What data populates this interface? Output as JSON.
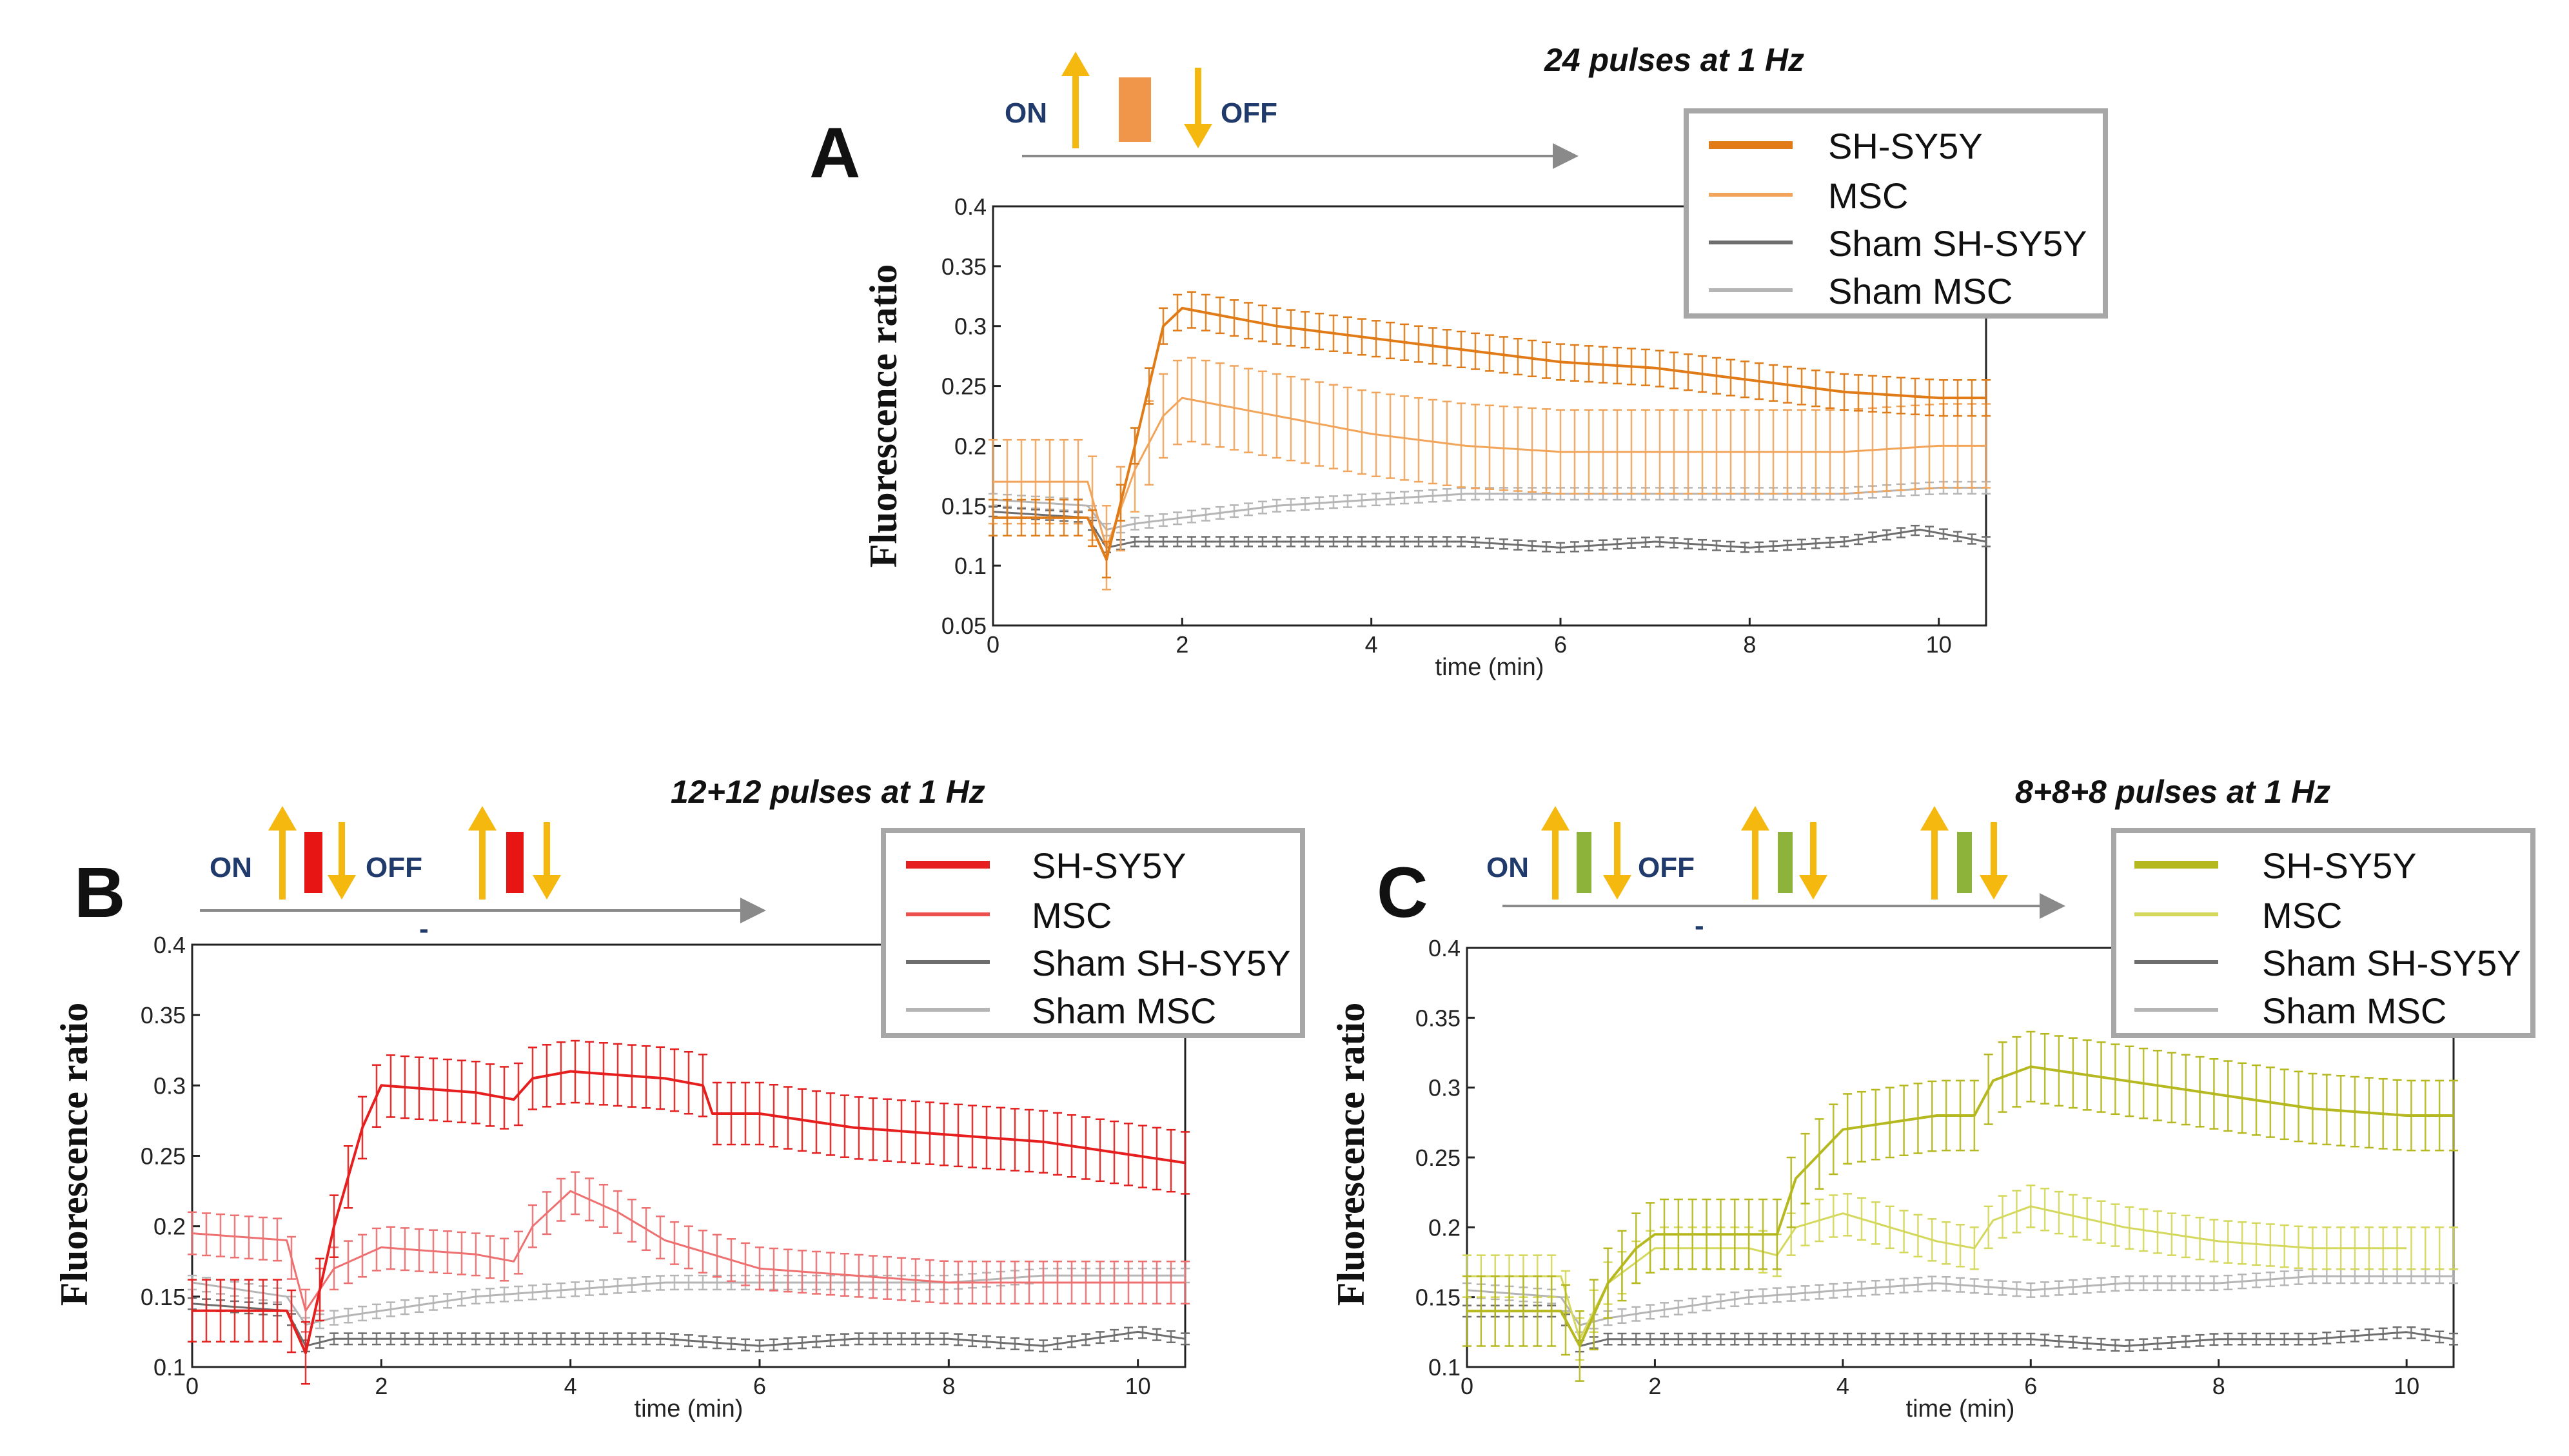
{
  "figure": {
    "on_label": "ON",
    "off_label": "OFF",
    "dash": "-",
    "colors": {
      "arrow": "#F5B80F",
      "timeline": "#8a8a8a",
      "on_off_text": "#1f3a6b",
      "sham_dark": "#6e6e6e",
      "sham_light": "#b5b5b5"
    }
  },
  "chart_data": [
    {
      "id": "A",
      "panel_label": "A",
      "type": "line",
      "title": "24 pulses at 1 Hz",
      "xlabel": "time (min)",
      "ylabel": "Fluorescence ratio",
      "xlim": [
        0,
        10.5
      ],
      "ylim": [
        0.05,
        0.4
      ],
      "xticks": [
        0,
        2,
        4,
        6,
        8,
        10
      ],
      "yticks": [
        0.05,
        0.1,
        0.15,
        0.2,
        0.25,
        0.3,
        0.35,
        0.4
      ],
      "grid": false,
      "error_bars": true,
      "stim_bars": 1,
      "stim_color": "#F0964A",
      "legend": {
        "location": "top-right",
        "entries": [
          "SH-SY5Y",
          "MSC",
          "Sham SH-SY5Y",
          "Sham MSC"
        ]
      },
      "series": [
        {
          "name": "SH-SY5Y",
          "color": "#E07B17",
          "width": 4,
          "points": [
            [
              0,
              0.14
            ],
            [
              1,
              0.14
            ],
            [
              1.2,
              0.105
            ],
            [
              1.5,
              0.2
            ],
            [
              1.8,
              0.3
            ],
            [
              2,
              0.315
            ],
            [
              3,
              0.3
            ],
            [
              4,
              0.29
            ],
            [
              5,
              0.28
            ],
            [
              6,
              0.27
            ],
            [
              7,
              0.265
            ],
            [
              8,
              0.255
            ],
            [
              9,
              0.245
            ],
            [
              10,
              0.24
            ],
            [
              10.5,
              0.24
            ]
          ],
          "err": 0.015
        },
        {
          "name": "MSC",
          "color": "#F2A55A",
          "width": 3,
          "points": [
            [
              0,
              0.17
            ],
            [
              1,
              0.17
            ],
            [
              1.2,
              0.115
            ],
            [
              1.5,
              0.18
            ],
            [
              1.8,
              0.225
            ],
            [
              2,
              0.24
            ],
            [
              3,
              0.225
            ],
            [
              4,
              0.21
            ],
            [
              5,
              0.2
            ],
            [
              6,
              0.195
            ],
            [
              7,
              0.195
            ],
            [
              8,
              0.195
            ],
            [
              9,
              0.195
            ],
            [
              10,
              0.2
            ],
            [
              10.5,
              0.2
            ]
          ],
          "err": 0.035
        },
        {
          "name": "Sham SH-SY5Y",
          "color": "#6e6e6e",
          "width": 3,
          "points": [
            [
              0,
              0.145
            ],
            [
              1,
              0.14
            ],
            [
              1.2,
              0.115
            ],
            [
              1.5,
              0.12
            ],
            [
              2,
              0.12
            ],
            [
              3,
              0.12
            ],
            [
              4,
              0.12
            ],
            [
              5,
              0.12
            ],
            [
              6,
              0.115
            ],
            [
              7,
              0.12
            ],
            [
              8,
              0.115
            ],
            [
              9,
              0.12
            ],
            [
              9.8,
              0.13
            ],
            [
              10.5,
              0.12
            ]
          ],
          "err": 0.004
        },
        {
          "name": "Sham MSC",
          "color": "#b5b5b5",
          "width": 3,
          "points": [
            [
              0,
              0.155
            ],
            [
              1,
              0.15
            ],
            [
              1.2,
              0.13
            ],
            [
              1.5,
              0.135
            ],
            [
              2,
              0.14
            ],
            [
              3,
              0.15
            ],
            [
              4,
              0.155
            ],
            [
              5,
              0.16
            ],
            [
              6,
              0.16
            ],
            [
              7,
              0.16
            ],
            [
              8,
              0.16
            ],
            [
              9,
              0.16
            ],
            [
              10,
              0.165
            ],
            [
              10.5,
              0.165
            ]
          ],
          "err": 0.005
        }
      ]
    },
    {
      "id": "B",
      "panel_label": "B",
      "type": "line",
      "title": "12+12 pulses at 1 Hz",
      "xlabel": "time (min)",
      "ylabel": "Fluorescence ratio",
      "xlim": [
        0,
        10.5
      ],
      "ylim": [
        0.1,
        0.4
      ],
      "xticks": [
        0,
        2,
        4,
        6,
        8,
        10
      ],
      "yticks": [
        0.1,
        0.15,
        0.2,
        0.25,
        0.3,
        0.35,
        0.4
      ],
      "grid": false,
      "error_bars": true,
      "stim_bars": 2,
      "stim_color": "#E81515",
      "legend": {
        "location": "top-right",
        "entries": [
          "SH-SY5Y",
          "MSC",
          "Sham SH-SY5Y",
          "Sham MSC"
        ]
      },
      "series": [
        {
          "name": "SH-SY5Y",
          "color": "#E61E1E",
          "width": 4,
          "points": [
            [
              0,
              0.14
            ],
            [
              1,
              0.14
            ],
            [
              1.2,
              0.11
            ],
            [
              1.5,
              0.2
            ],
            [
              1.8,
              0.27
            ],
            [
              2,
              0.3
            ],
            [
              3,
              0.295
            ],
            [
              3.4,
              0.29
            ],
            [
              3.6,
              0.305
            ],
            [
              4,
              0.31
            ],
            [
              5,
              0.305
            ],
            [
              5.4,
              0.3
            ],
            [
              5.5,
              0.28
            ],
            [
              6,
              0.28
            ],
            [
              7,
              0.27
            ],
            [
              8,
              0.265
            ],
            [
              9,
              0.26
            ],
            [
              10,
              0.25
            ],
            [
              10.5,
              0.245
            ]
          ],
          "err": 0.022
        },
        {
          "name": "MSC",
          "color": "#EE7070",
          "width": 3,
          "points": [
            [
              0,
              0.195
            ],
            [
              1,
              0.19
            ],
            [
              1.2,
              0.14
            ],
            [
              1.5,
              0.17
            ],
            [
              2,
              0.185
            ],
            [
              3,
              0.18
            ],
            [
              3.4,
              0.175
            ],
            [
              3.6,
              0.2
            ],
            [
              4,
              0.225
            ],
            [
              4.5,
              0.21
            ],
            [
              5,
              0.19
            ],
            [
              6,
              0.17
            ],
            [
              7,
              0.165
            ],
            [
              8,
              0.16
            ],
            [
              9,
              0.16
            ],
            [
              10,
              0.16
            ],
            [
              10.5,
              0.16
            ]
          ],
          "err": 0.015
        },
        {
          "name": "Sham SH-SY5Y",
          "color": "#6e6e6e",
          "width": 3,
          "points": [
            [
              0,
              0.145
            ],
            [
              1,
              0.14
            ],
            [
              1.2,
              0.115
            ],
            [
              1.5,
              0.12
            ],
            [
              2,
              0.12
            ],
            [
              3,
              0.12
            ],
            [
              4,
              0.12
            ],
            [
              5,
              0.12
            ],
            [
              6,
              0.115
            ],
            [
              7,
              0.12
            ],
            [
              8,
              0.12
            ],
            [
              9,
              0.115
            ],
            [
              10,
              0.125
            ],
            [
              10.5,
              0.12
            ]
          ],
          "err": 0.004
        },
        {
          "name": "Sham MSC",
          "color": "#b5b5b5",
          "width": 3,
          "points": [
            [
              0,
              0.16
            ],
            [
              1,
              0.15
            ],
            [
              1.2,
              0.13
            ],
            [
              1.5,
              0.135
            ],
            [
              2,
              0.14
            ],
            [
              3,
              0.15
            ],
            [
              4,
              0.155
            ],
            [
              5,
              0.16
            ],
            [
              6,
              0.16
            ],
            [
              7,
              0.16
            ],
            [
              8,
              0.16
            ],
            [
              9,
              0.165
            ],
            [
              10,
              0.165
            ],
            [
              10.5,
              0.165
            ]
          ],
          "err": 0.005
        }
      ]
    },
    {
      "id": "C",
      "panel_label": "C",
      "type": "line",
      "title": "8+8+8 pulses at 1 Hz",
      "xlabel": "time (min)",
      "ylabel": "Fluorescence ratio",
      "xlim": [
        0,
        10.5
      ],
      "ylim": [
        0.1,
        0.4
      ],
      "xticks": [
        0,
        2,
        4,
        6,
        8,
        10
      ],
      "yticks": [
        0.1,
        0.15,
        0.2,
        0.25,
        0.3,
        0.35,
        0.4
      ],
      "grid": false,
      "error_bars": true,
      "stim_bars": 3,
      "stim_color": "#8DB33B",
      "legend": {
        "location": "top-right",
        "entries": [
          "SH-SY5Y",
          "MSC",
          "Sham SH-SY5Y",
          "Sham MSC"
        ]
      },
      "series": [
        {
          "name": "SH-SY5Y",
          "color": "#B5B81E",
          "width": 4,
          "points": [
            [
              0,
              0.14
            ],
            [
              1,
              0.14
            ],
            [
              1.2,
              0.115
            ],
            [
              1.5,
              0.16
            ],
            [
              1.8,
              0.185
            ],
            [
              2,
              0.195
            ],
            [
              3,
              0.195
            ],
            [
              3.3,
              0.195
            ],
            [
              3.5,
              0.235
            ],
            [
              4,
              0.27
            ],
            [
              5,
              0.28
            ],
            [
              5.4,
              0.28
            ],
            [
              5.6,
              0.305
            ],
            [
              6,
              0.315
            ],
            [
              7,
              0.305
            ],
            [
              8,
              0.295
            ],
            [
              9,
              0.285
            ],
            [
              10,
              0.28
            ],
            [
              10.5,
              0.28
            ]
          ],
          "err": 0.025
        },
        {
          "name": "MSC",
          "color": "#D4D85C",
          "width": 3,
          "points": [
            [
              0,
              0.165
            ],
            [
              1,
              0.165
            ],
            [
              1.2,
              0.12
            ],
            [
              1.5,
              0.16
            ],
            [
              2,
              0.185
            ],
            [
              3,
              0.185
            ],
            [
              3.3,
              0.18
            ],
            [
              3.5,
              0.2
            ],
            [
              4,
              0.21
            ],
            [
              5,
              0.19
            ],
            [
              5.4,
              0.185
            ],
            [
              5.6,
              0.205
            ],
            [
              6,
              0.215
            ],
            [
              7,
              0.2
            ],
            [
              8,
              0.19
            ],
            [
              9,
              0.185
            ],
            [
              10,
              0.185
            ]
          ],
          "err": 0.015
        },
        {
          "name": "Sham SH-SY5Y",
          "color": "#6e6e6e",
          "width": 3,
          "points": [
            [
              0,
              0.14
            ],
            [
              1,
              0.14
            ],
            [
              1.2,
              0.115
            ],
            [
              1.5,
              0.12
            ],
            [
              2,
              0.12
            ],
            [
              3,
              0.12
            ],
            [
              4,
              0.12
            ],
            [
              5,
              0.12
            ],
            [
              6,
              0.12
            ],
            [
              7,
              0.115
            ],
            [
              8,
              0.12
            ],
            [
              9,
              0.12
            ],
            [
              10,
              0.125
            ],
            [
              10.5,
              0.12
            ]
          ],
          "err": 0.004
        },
        {
          "name": "Sham MSC",
          "color": "#b5b5b5",
          "width": 3,
          "points": [
            [
              0,
              0.155
            ],
            [
              1,
              0.15
            ],
            [
              1.2,
              0.13
            ],
            [
              1.5,
              0.135
            ],
            [
              2,
              0.14
            ],
            [
              3,
              0.15
            ],
            [
              4,
              0.155
            ],
            [
              5,
              0.16
            ],
            [
              6,
              0.155
            ],
            [
              7,
              0.16
            ],
            [
              8,
              0.16
            ],
            [
              9,
              0.165
            ],
            [
              10,
              0.165
            ],
            [
              10.5,
              0.165
            ]
          ],
          "err": 0.005
        }
      ]
    }
  ]
}
